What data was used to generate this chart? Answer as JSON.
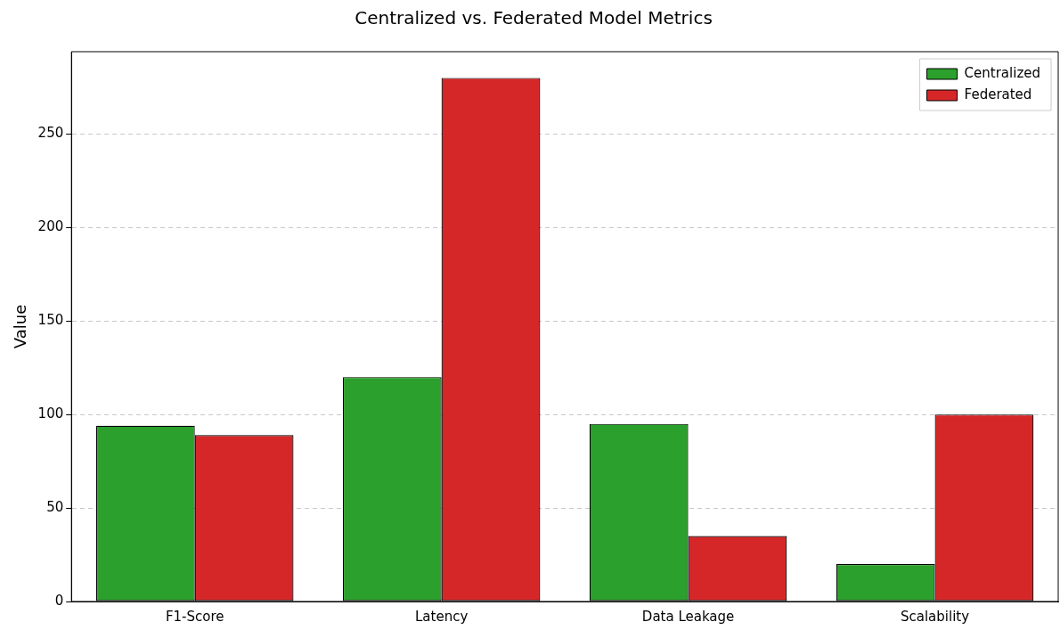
{
  "chart_data": {
    "type": "bar",
    "title": "Centralized vs. Federated Model Metrics",
    "ylabel": "Value",
    "categories": [
      "F1-Score",
      "Latency",
      "Data Leakage",
      "Scalability"
    ],
    "series": [
      {
        "name": "Centralized",
        "color": "#2ca02c",
        "values": [
          94,
          120,
          95,
          20
        ]
      },
      {
        "name": "Federated",
        "color": "#d62728",
        "values": [
          89,
          280,
          35,
          100
        ]
      }
    ],
    "ylim": [
      0,
      294
    ],
    "yticks": [
      0,
      50,
      100,
      150,
      200,
      250
    ],
    "grid": "y",
    "legend": "top right"
  }
}
